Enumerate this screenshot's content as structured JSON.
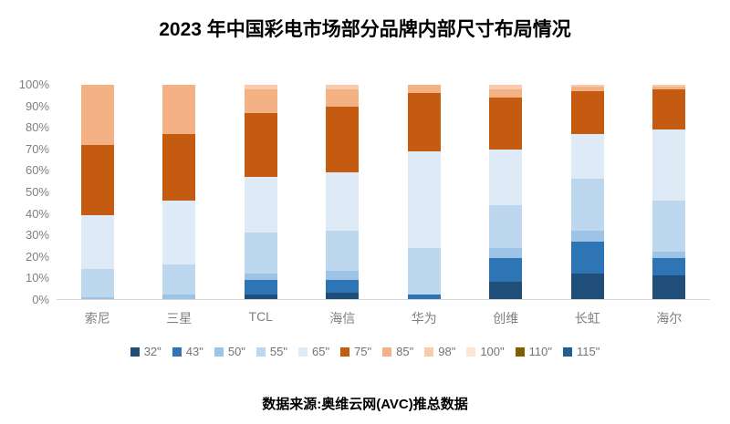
{
  "title": "2023 年中国彩电市场部分品牌内部尺寸布局情况",
  "footer": "数据来源:奥维云网(AVC)推总数据",
  "chart_data": {
    "type": "bar",
    "stacked": true,
    "units": "%",
    "title": "2023 年中国彩电市场部分品牌内部尺寸布局情况",
    "xlabel": "",
    "ylabel": "",
    "ylim": [
      0,
      100
    ],
    "yticks": [
      "100%",
      "90%",
      "80%",
      "70%",
      "60%",
      "50%",
      "40%",
      "30%",
      "20%",
      "10%",
      "0%"
    ],
    "grid": false,
    "legend_position": "bottom",
    "categories": [
      "索尼",
      "三星",
      "TCL",
      "海信",
      "华为",
      "创维",
      "长虹",
      "海尔"
    ],
    "series": [
      {
        "name": "32\"",
        "color": "#1F4E79",
        "values": [
          0,
          0,
          2,
          3,
          0,
          8,
          12,
          11
        ]
      },
      {
        "name": "43\"",
        "color": "#2E75B6",
        "values": [
          0,
          0,
          7,
          6,
          2,
          11,
          15,
          8
        ]
      },
      {
        "name": "50\"",
        "color": "#9DC3E6",
        "values": [
          1,
          2,
          3,
          4,
          0,
          5,
          5,
          3
        ]
      },
      {
        "name": "55\"",
        "color": "#BDD7EE",
        "values": [
          13,
          14,
          19,
          19,
          22,
          20,
          24,
          24
        ]
      },
      {
        "name": "65\"",
        "color": "#DEEBF7",
        "values": [
          25,
          30,
          26,
          27,
          45,
          26,
          21,
          33
        ]
      },
      {
        "name": "75\"",
        "color": "#C55A11",
        "values": [
          33,
          31,
          30,
          31,
          27,
          24,
          20,
          19
        ]
      },
      {
        "name": "85\"",
        "color": "#F4B183",
        "values": [
          28,
          23,
          11,
          8,
          4,
          4,
          2,
          1
        ]
      },
      {
        "name": "98\"",
        "color": "#F8CBAD",
        "values": [
          0,
          0,
          2,
          2,
          0,
          2,
          1,
          1
        ]
      },
      {
        "name": "100\"",
        "color": "#FBE5D6",
        "values": [
          0,
          0,
          0,
          0,
          0,
          0,
          0,
          0
        ]
      },
      {
        "name": "110\"",
        "color": "#7F6000",
        "values": [
          0,
          0,
          0,
          0,
          0,
          0,
          0,
          0
        ]
      },
      {
        "name": "115\"",
        "color": "#255E91",
        "values": [
          0,
          0,
          0,
          0,
          0,
          0,
          0,
          0
        ]
      }
    ]
  }
}
